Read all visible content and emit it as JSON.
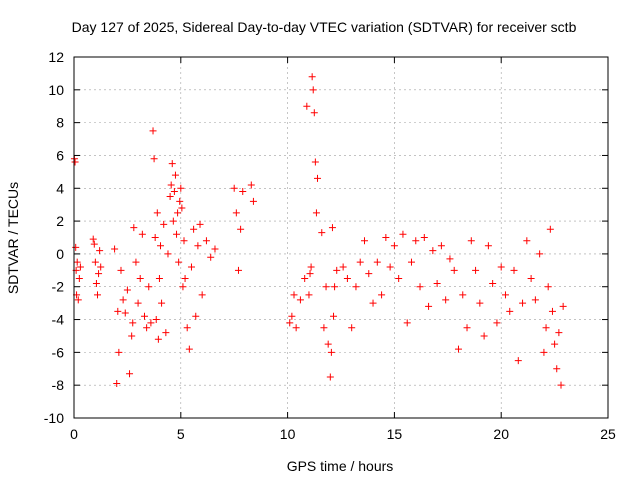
{
  "chart_data": {
    "type": "scatter",
    "title": "Day 127 of 2025, Sidereal Day-to-day VTEC variation (SDTVAR) for receiver sctb",
    "xlabel": "GPS time / hours",
    "ylabel": "SDTVAR / TECUs",
    "xlim": [
      0,
      25
    ],
    "ylim": [
      -10,
      12
    ],
    "xticks": [
      0,
      5,
      10,
      15,
      20,
      25
    ],
    "yticks": [
      -10,
      -8,
      -6,
      -4,
      -2,
      0,
      2,
      4,
      6,
      8,
      10,
      12
    ],
    "grid": true,
    "marker": "+",
    "color": "#ff0000",
    "series": [
      {
        "name": "SDTVAR",
        "x": [
          0.02,
          0.05,
          0.08,
          0.1,
          0.12,
          0.15,
          0.2,
          0.25,
          0.3,
          0.9,
          0.95,
          1.0,
          1.05,
          1.1,
          1.15,
          1.2,
          1.25,
          1.9,
          2.0,
          2.05,
          2.1,
          2.2,
          2.3,
          2.4,
          2.5,
          2.6,
          2.7,
          2.75,
          2.8,
          2.9,
          3.0,
          3.1,
          3.2,
          3.3,
          3.4,
          3.5,
          3.6,
          3.7,
          3.75,
          3.8,
          3.85,
          3.9,
          3.95,
          4.0,
          4.05,
          4.1,
          4.2,
          4.3,
          4.4,
          4.5,
          4.55,
          4.6,
          4.65,
          4.7,
          4.75,
          4.8,
          4.85,
          4.9,
          4.95,
          5.0,
          5.05,
          5.1,
          5.15,
          5.2,
          5.3,
          5.4,
          5.5,
          5.6,
          5.7,
          5.8,
          5.9,
          6.0,
          6.2,
          6.4,
          6.6,
          7.5,
          7.6,
          7.7,
          7.8,
          7.9,
          8.3,
          8.4,
          10.1,
          10.2,
          10.3,
          10.4,
          10.6,
          10.8,
          10.9,
          11.0,
          11.05,
          11.1,
          11.15,
          11.2,
          11.25,
          11.3,
          11.35,
          11.4,
          11.6,
          11.7,
          11.8,
          11.9,
          12.0,
          12.05,
          12.1,
          12.15,
          12.2,
          12.3,
          12.6,
          12.8,
          13.0,
          13.2,
          13.4,
          13.6,
          13.8,
          14.0,
          14.2,
          14.4,
          14.6,
          14.8,
          15.0,
          15.2,
          15.4,
          15.6,
          15.8,
          16.0,
          16.2,
          16.4,
          16.6,
          16.8,
          17.0,
          17.2,
          17.4,
          17.6,
          17.8,
          18.0,
          18.2,
          18.4,
          18.6,
          18.8,
          19.0,
          19.2,
          19.4,
          19.6,
          19.8,
          20.0,
          20.2,
          20.4,
          20.6,
          20.8,
          21.0,
          21.2,
          21.4,
          21.6,
          21.8,
          22.0,
          22.1,
          22.2,
          22.3,
          22.4,
          22.5,
          22.6,
          22.7,
          22.8,
          22.9
        ],
        "y": [
          5.8,
          5.6,
          0.4,
          -1.0,
          -2.5,
          -0.5,
          -2.8,
          -1.5,
          -0.8,
          0.9,
          0.6,
          -0.5,
          -1.8,
          -2.5,
          -1.2,
          0.2,
          -0.8,
          0.3,
          -7.9,
          -3.5,
          -6.0,
          -1.0,
          -2.8,
          -3.6,
          -2.2,
          -7.3,
          -5.0,
          -4.2,
          1.6,
          -0.5,
          -3.0,
          -1.5,
          1.2,
          -3.8,
          -4.5,
          -2.0,
          -4.2,
          7.5,
          5.8,
          1.0,
          -4.0,
          2.5,
          -5.2,
          -1.5,
          0.5,
          -3.0,
          1.8,
          -4.8,
          0.0,
          3.5,
          4.2,
          5.5,
          2.0,
          3.8,
          4.8,
          1.2,
          2.5,
          -0.5,
          3.2,
          4.0,
          2.8,
          -2.0,
          0.8,
          -1.5,
          -4.5,
          -5.8,
          -0.8,
          1.5,
          -3.8,
          0.5,
          1.8,
          -2.5,
          0.8,
          -0.2,
          0.3,
          4.0,
          2.5,
          -1.0,
          1.5,
          3.8,
          4.2,
          3.2,
          -4.2,
          -3.8,
          -2.5,
          -4.5,
          -2.8,
          -1.5,
          9.0,
          -2.5,
          -1.2,
          -0.8,
          10.8,
          10.0,
          8.6,
          5.6,
          2.5,
          4.6,
          1.3,
          -4.5,
          -2.0,
          -5.5,
          -7.5,
          -6.0,
          1.6,
          -3.8,
          -2.0,
          -1.0,
          -0.8,
          -1.5,
          -4.5,
          -2.0,
          -0.5,
          0.8,
          -1.2,
          -3.0,
          -0.5,
          -2.5,
          1.0,
          -0.8,
          0.5,
          -1.5,
          1.2,
          -4.2,
          -0.5,
          0.8,
          -2.0,
          1.0,
          -3.2,
          0.2,
          -1.8,
          0.5,
          -2.8,
          -0.3,
          -1.0,
          -5.8,
          -2.5,
          -4.5,
          0.8,
          -1.0,
          -3.0,
          -5.0,
          0.5,
          -1.8,
          -4.2,
          -0.8,
          -2.5,
          -3.5,
          -1.0,
          -6.5,
          -3.0,
          0.8,
          -1.5,
          -2.8,
          0.0,
          -6.0,
          -4.5,
          -2.0,
          1.5,
          -3.5,
          -5.5,
          -7.0,
          -4.8,
          -8.0,
          -3.2
        ]
      }
    ]
  }
}
